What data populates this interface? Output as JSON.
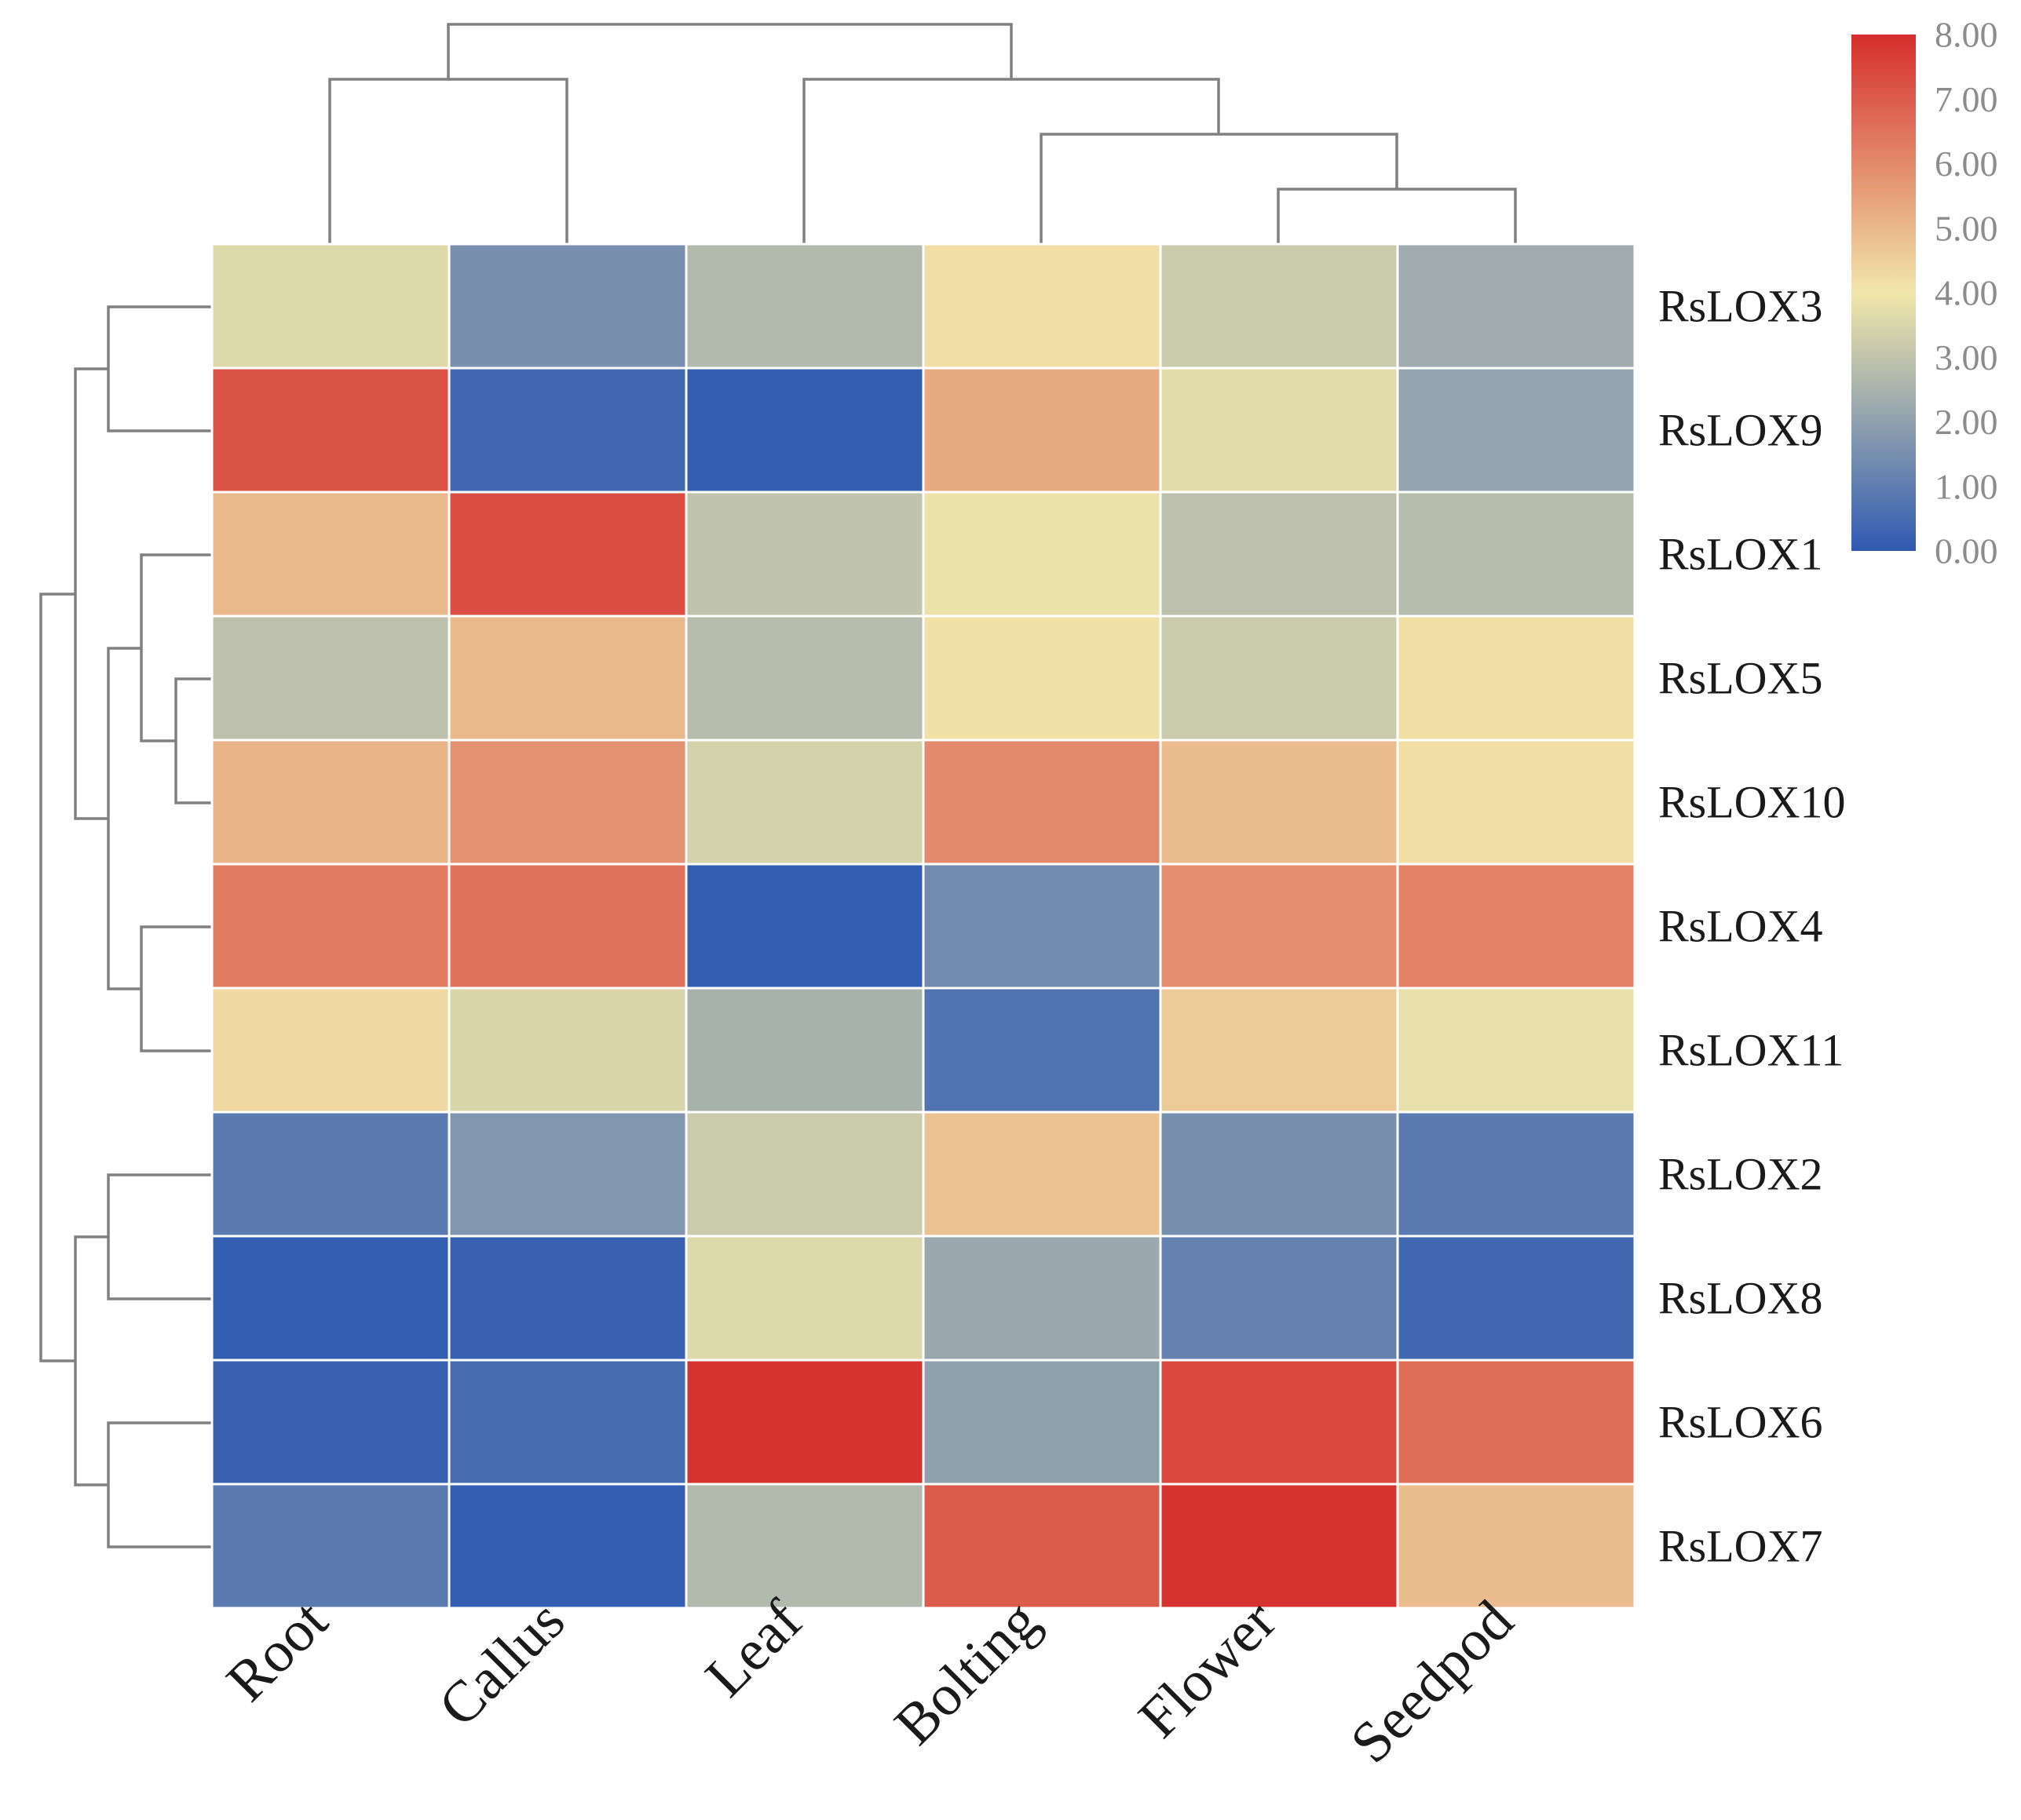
{
  "chart_data": {
    "type": "heatmap",
    "title": "",
    "columns": [
      "Root",
      "Callus",
      "Leaf",
      "Bolting",
      "Flower",
      "Seedpod"
    ],
    "rows": [
      "RsLOX3",
      "RsLOX9",
      "RsLOX1",
      "RsLOX5",
      "RsLOX10",
      "RsLOX4",
      "RsLOX11",
      "RsLOX2",
      "RsLOX8",
      "RsLOX6",
      "RsLOX7"
    ],
    "values": [
      [
        3.6,
        1.5,
        2.7,
        4.2,
        3.2,
        2.3
      ],
      [
        7.2,
        0.4,
        0.1,
        5.3,
        3.7,
        2.1
      ],
      [
        5.0,
        7.3,
        3.0,
        3.9,
        2.9,
        2.8
      ],
      [
        2.9,
        5.0,
        2.8,
        4.1,
        3.2,
        4.2
      ],
      [
        5.1,
        5.8,
        3.4,
        6.0,
        4.9,
        4.2
      ],
      [
        6.3,
        6.5,
        0.1,
        1.4,
        5.9,
        6.2
      ],
      [
        4.3,
        3.5,
        2.5,
        0.7,
        4.6,
        3.8
      ],
      [
        0.9,
        1.7,
        3.2,
        4.8,
        1.5,
        0.9
      ],
      [
        0.1,
        0.2,
        3.6,
        2.2,
        1.1,
        0.4
      ],
      [
        0.2,
        0.5,
        7.9,
        2.0,
        7.4,
        6.6
      ],
      [
        0.9,
        0.1,
        2.7,
        7.0,
        7.9,
        4.9
      ]
    ],
    "colorbar": {
      "min": 0,
      "max": 8,
      "ticks": [
        "8.00",
        "7.00",
        "6.00",
        "5.00",
        "4.00",
        "3.00",
        "2.00",
        "1.00",
        "0.00"
      ],
      "colors": [
        "#2f5ab2",
        "#f1e7aa",
        "#d52d2d"
      ]
    },
    "column_dendrogram": "((Root,Callus),(Leaf,(Bolting,(Flower,Seedpod))))",
    "row_dendrogram": "((RsLOX3,RsLOX9),((RsLOX1,(RsLOX5,RsLOX10)),(RsLOX4,RsLOX11))),((RsLOX2,RsLOX8),(RsLOX6,RsLOX7))",
    "legend_position": "top-right"
  }
}
